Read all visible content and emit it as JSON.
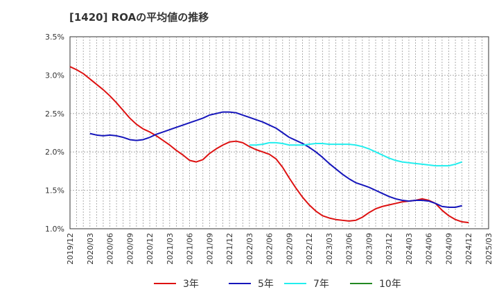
{
  "chart_data": {
    "type": "line",
    "title": "[1420]  ROAの平均値の推移",
    "xlabel": "",
    "ylabel": "",
    "ylim": [
      1.0,
      3.5
    ],
    "y_ticks": [
      "1.0%",
      "1.5%",
      "2.0%",
      "2.5%",
      "3.0%",
      "3.5%"
    ],
    "y_tick_values": [
      1.0,
      1.5,
      2.0,
      2.5,
      3.0,
      3.5
    ],
    "x_ticks": [
      "2019/12",
      "2020/03",
      "2020/06",
      "2020/09",
      "2020/12",
      "2021/03",
      "2021/06",
      "2021/09",
      "2021/12",
      "2022/03",
      "2022/06",
      "2022/09",
      "2022/12",
      "2023/03",
      "2023/06",
      "2023/09",
      "2023/12",
      "2024/03",
      "2024/06",
      "2024/09",
      "2024/12",
      "2025/03"
    ],
    "grid": true,
    "legend_position": "bottom",
    "series": [
      {
        "name": "3年",
        "color": "#dd1111",
        "start": "2019/12",
        "values": [
          3.11,
          3.07,
          3.02,
          2.95,
          2.88,
          2.81,
          2.73,
          2.64,
          2.54,
          2.44,
          2.36,
          2.3,
          2.26,
          2.21,
          2.15,
          2.09,
          2.02,
          1.96,
          1.89,
          1.87,
          1.9,
          1.98,
          2.04,
          2.09,
          2.13,
          2.14,
          2.12,
          2.07,
          2.03,
          2.0,
          1.97,
          1.91,
          1.8,
          1.66,
          1.53,
          1.41,
          1.31,
          1.23,
          1.17,
          1.14,
          1.12,
          1.11,
          1.1,
          1.11,
          1.15,
          1.21,
          1.26,
          1.29,
          1.31,
          1.33,
          1.35,
          1.36,
          1.37,
          1.39,
          1.37,
          1.33,
          1.24,
          1.17,
          1.12,
          1.09,
          1.08
        ]
      },
      {
        "name": "5年",
        "color": "#1515bb",
        "start": "2020/03",
        "values": [
          2.24,
          2.22,
          2.21,
          2.22,
          2.21,
          2.19,
          2.16,
          2.15,
          2.16,
          2.19,
          2.23,
          2.26,
          2.29,
          2.32,
          2.35,
          2.38,
          2.41,
          2.44,
          2.48,
          2.5,
          2.52,
          2.52,
          2.51,
          2.48,
          2.45,
          2.42,
          2.39,
          2.35,
          2.31,
          2.25,
          2.19,
          2.15,
          2.11,
          2.06,
          2.0,
          1.93,
          1.85,
          1.78,
          1.71,
          1.65,
          1.6,
          1.57,
          1.54,
          1.5,
          1.46,
          1.42,
          1.39,
          1.37,
          1.36,
          1.37,
          1.37,
          1.36,
          1.33,
          1.29,
          1.28,
          1.28,
          1.3
        ]
      },
      {
        "name": "7年",
        "color": "#22eeee",
        "start": "2022/03",
        "values": [
          2.09,
          2.09,
          2.1,
          2.12,
          2.12,
          2.11,
          2.09,
          2.09,
          2.09,
          2.1,
          2.11,
          2.11,
          2.1,
          2.1,
          2.1,
          2.1,
          2.09,
          2.07,
          2.04,
          2.0,
          1.96,
          1.92,
          1.89,
          1.87,
          1.86,
          1.85,
          1.84,
          1.83,
          1.82,
          1.82,
          1.82,
          1.84,
          1.87
        ]
      },
      {
        "name": "10年",
        "color": "#228822",
        "start": "2024/12",
        "values": []
      }
    ]
  }
}
